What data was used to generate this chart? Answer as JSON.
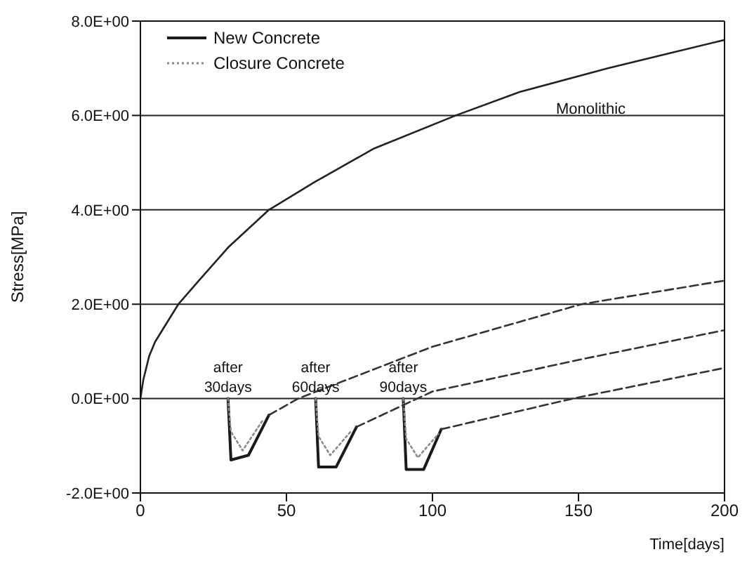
{
  "chart_data": {
    "type": "line",
    "xlabel": "Time[days]",
    "ylabel": "Stress[MPa]",
    "xlim": [
      0,
      200
    ],
    "xticks": [
      0,
      50,
      100,
      150,
      200
    ],
    "ylim": [
      -2,
      8
    ],
    "yticks": [
      {
        "value": -2,
        "label": "-2.0E+00"
      },
      {
        "value": 0,
        "label": "0.0E+00"
      },
      {
        "value": 2,
        "label": "2.0E+00"
      },
      {
        "value": 4,
        "label": "4.0E+00"
      },
      {
        "value": 6,
        "label": "6.0E+00"
      },
      {
        "value": 8,
        "label": "8.0E+00"
      }
    ],
    "grid": "y",
    "legend": "top left",
    "marker": "none",
    "annotations": [
      {
        "text": "after\n30days",
        "x": 30,
        "y": 0
      },
      {
        "text": "after\n60days",
        "x": 60,
        "y": 0
      },
      {
        "text": "after\n90days",
        "x": 90,
        "y": 0
      },
      "Monolithic"
    ],
    "series": [
      {
        "color": "#222222",
        "line_style": "solid",
        "x": [
          0,
          1,
          3,
          5,
          8,
          13,
          20,
          30,
          44,
          60,
          80,
          108,
          130,
          160,
          180,
          200
        ],
        "values": [
          0,
          0.4,
          0.9,
          1.2,
          1.5,
          2.0,
          2.5,
          3.2,
          4.0,
          4.6,
          5.3,
          6.0,
          6.5,
          7.0,
          7.3,
          7.6
        ]
      },
      {
        "name": "New Concrete",
        "color": "#1a1a1a",
        "line_style": "solid",
        "x": [
          30,
          31,
          37,
          44
        ],
        "values": [
          0,
          -1.3,
          -1.2,
          -0.35
        ]
      },
      {
        "name": "Closure Concrete",
        "color": "#8a8a8a",
        "line_style": "dotted",
        "x": [
          30,
          31,
          35,
          42
        ],
        "values": [
          0,
          -0.7,
          -1.1,
          -0.45
        ]
      },
      {
        "color": "#1a1a1a",
        "line_style": "solid",
        "x": [
          60,
          61,
          67,
          74
        ],
        "values": [
          0,
          -1.45,
          -1.45,
          -0.6
        ]
      },
      {
        "color": "#8a8a8a",
        "line_style": "dotted",
        "x": [
          60,
          61,
          65,
          72
        ],
        "values": [
          0,
          -0.8,
          -1.2,
          -0.7
        ]
      },
      {
        "color": "#1a1a1a",
        "line_style": "solid",
        "x": [
          90,
          91,
          97,
          103
        ],
        "values": [
          0,
          -1.5,
          -1.5,
          -0.65
        ]
      },
      {
        "color": "#8a8a8a",
        "line_style": "dotted",
        "x": [
          90,
          91,
          95,
          102
        ],
        "values": [
          0,
          -0.85,
          -1.25,
          -0.75
        ]
      },
      {
        "color": "#333333",
        "line_style": "dashed",
        "x": [
          44,
          54,
          100,
          151,
          200
        ],
        "values": [
          -0.35,
          0,
          1.1,
          2.0,
          2.5
        ]
      },
      {
        "color": "#333333",
        "line_style": "dashed",
        "x": [
          74,
          100,
          150,
          200
        ],
        "values": [
          -0.6,
          0.15,
          0.82,
          1.45
        ]
      },
      {
        "color": "#333333",
        "line_style": "dashed",
        "x": [
          103,
          148,
          200
        ],
        "values": [
          -0.65,
          0,
          0.65
        ]
      }
    ]
  }
}
